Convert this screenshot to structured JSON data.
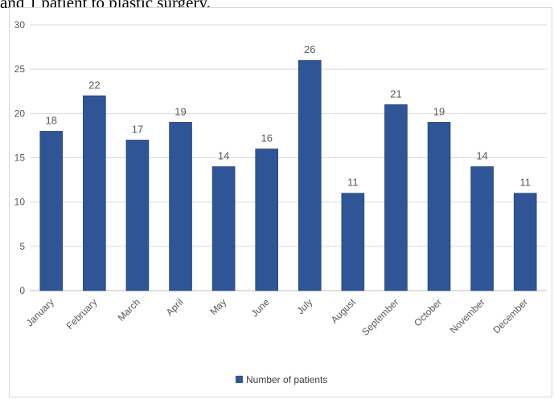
{
  "caption": "and 1 patient to plastic surgery.",
  "chart_data": {
    "type": "bar",
    "categories": [
      "January",
      "February",
      "March",
      "April",
      "May",
      "June",
      "July",
      "August",
      "September",
      "October",
      "November",
      "December"
    ],
    "series": [
      {
        "name": "Number of patients",
        "values": [
          18,
          22,
          17,
          19,
          14,
          16,
          26,
          11,
          21,
          19,
          14,
          11
        ],
        "color": "#2f5597"
      }
    ],
    "ylim": [
      0,
      30
    ],
    "yticks": [
      0,
      5,
      10,
      15,
      20,
      25,
      30
    ],
    "grid": true,
    "legend": "bottom",
    "data_labels": true,
    "title": "",
    "xlabel": "",
    "ylabel": ""
  }
}
